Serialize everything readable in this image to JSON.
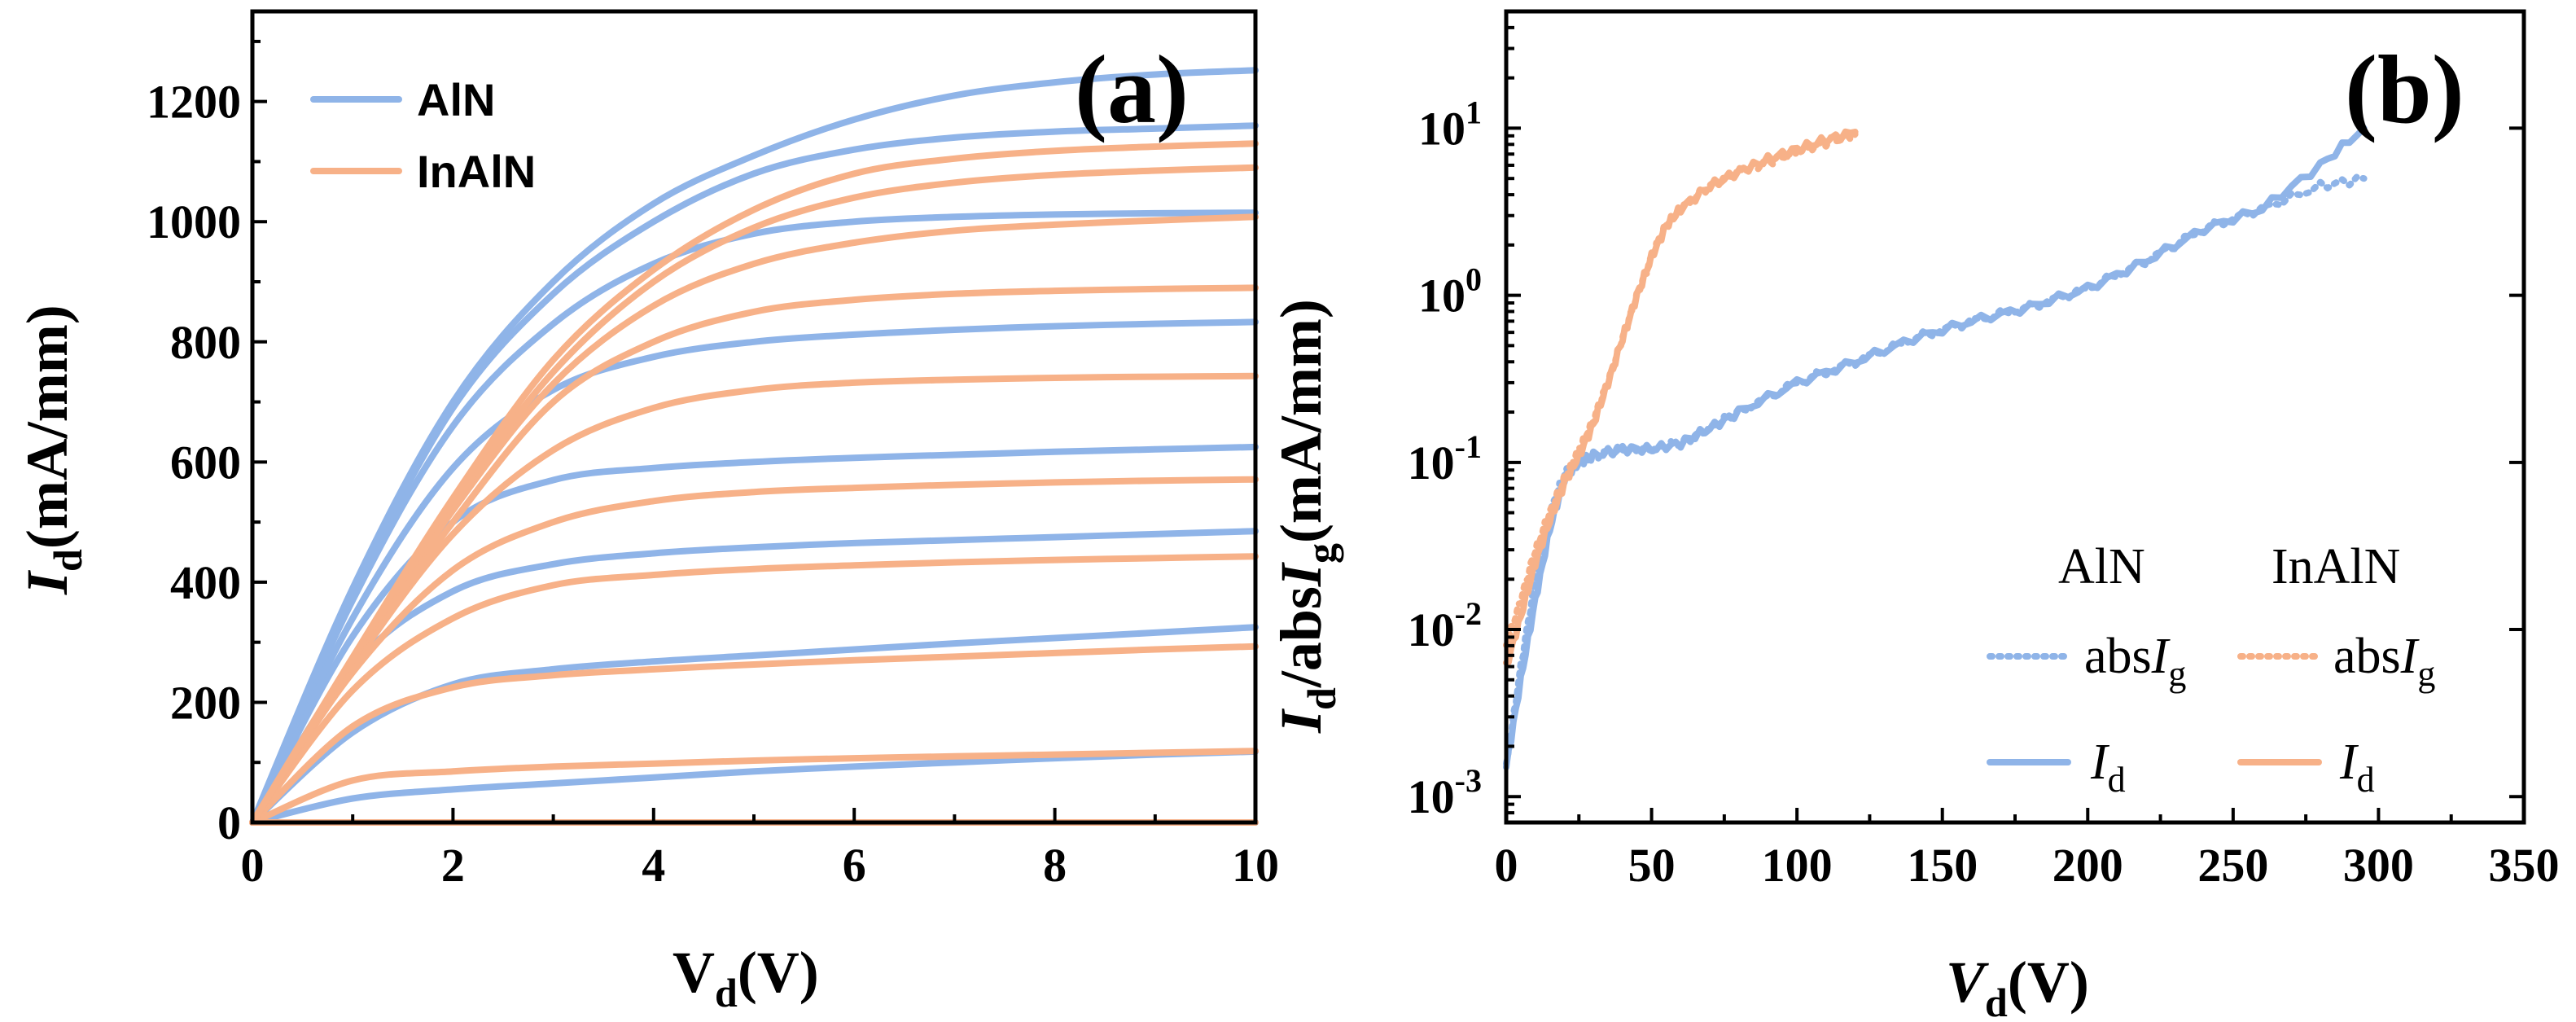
{
  "colors": {
    "aln": "#8fb4e8",
    "inaln": "#f7b188",
    "axis": "#000000"
  },
  "chart_data": [
    {
      "id": "a",
      "type": "line",
      "panel_label": "(a)",
      "xlabel": {
        "main": "V",
        "sub": "d",
        "unit": "(V)"
      },
      "ylabel": {
        "main": "I",
        "sub": "d",
        "unit": "(mA/mm)"
      },
      "xlim": [
        0,
        10
      ],
      "ylim": [
        0,
        1350
      ],
      "xticks": [
        0,
        2,
        4,
        6,
        8,
        10
      ],
      "xtick_labels": [
        "0",
        "2",
        "4",
        "6",
        "8",
        "10"
      ],
      "yticks": [
        0,
        200,
        400,
        600,
        800,
        1000,
        1200
      ],
      "ytick_labels": [
        "0",
        "200",
        "400",
        "600",
        "800",
        "1000",
        "1200"
      ],
      "legend": {
        "position": "top-left",
        "entries": [
          "AlN",
          "InAlN"
        ]
      },
      "series": [
        {
          "name": "AlN",
          "x": [
            0,
            1,
            2,
            3,
            4,
            5,
            6,
            7,
            8,
            9,
            10
          ],
          "curves": [
            [
              0,
              0,
              0,
              0,
              0,
              0,
              0,
              0,
              0,
              0,
              0
            ],
            [
              0,
              40,
              55,
              65,
              75,
              85,
              93,
              100,
              107,
              113,
              118
            ],
            [
              0,
              150,
              230,
              255,
              268,
              278,
              288,
              298,
              307,
              316,
              325
            ],
            [
              0,
              260,
              385,
              430,
              448,
              458,
              465,
              470,
              475,
              480,
              485
            ],
            [
              0,
              310,
              500,
              570,
              590,
              600,
              607,
              612,
              617,
              621,
              625
            ],
            [
              0,
              340,
              590,
              720,
              775,
              800,
              812,
              820,
              826,
              830,
              833
            ],
            [
              0,
              370,
              660,
              830,
              930,
              980,
              1000,
              1008,
              1012,
              1014,
              1015
            ],
            [
              0,
              380,
              690,
              880,
              1000,
              1080,
              1120,
              1140,
              1150,
              1155,
              1160
            ],
            [
              0,
              390,
              700,
              900,
              1030,
              1110,
              1170,
              1210,
              1232,
              1245,
              1252
            ]
          ]
        },
        {
          "name": "InAlN",
          "x": [
            0,
            1,
            2,
            3,
            4,
            5,
            6,
            7,
            8,
            9,
            10
          ],
          "curves": [
            [
              0,
              0,
              0,
              0,
              0,
              0,
              0,
              0,
              0,
              0,
              0
            ],
            [
              0,
              70,
              85,
              93,
              98,
              103,
              107,
              110,
              113,
              116,
              119
            ],
            [
              0,
              160,
              225,
              245,
              255,
              263,
              270,
              276,
              282,
              288,
              293
            ],
            [
              0,
              220,
              340,
              395,
              412,
              422,
              428,
              433,
              437,
              440,
              443
            ],
            [
              0,
              250,
              420,
              500,
              535,
              550,
              557,
              562,
              566,
              569,
              571
            ],
            [
              0,
              260,
              480,
              620,
              690,
              720,
              732,
              737,
              740,
              742,
              743
            ],
            [
              0,
              265,
              500,
              700,
              800,
              850,
              870,
              880,
              885,
              888,
              890
            ],
            [
              0,
              270,
              520,
              730,
              860,
              930,
              965,
              985,
              995,
              1002,
              1008
            ],
            [
              0,
              270,
              530,
              750,
              900,
              990,
              1040,
              1065,
              1078,
              1085,
              1090
            ],
            [
              0,
              275,
              540,
              770,
              920,
              1020,
              1080,
              1105,
              1118,
              1125,
              1130
            ]
          ]
        }
      ]
    },
    {
      "id": "b",
      "type": "line",
      "panel_label": "(b)",
      "xlabel": {
        "main": "V",
        "sub": "d",
        "unit": "(V)"
      },
      "ylabel": {
        "main1": "I",
        "sub1": "d",
        "mid": "/abs",
        "main2": "I",
        "sub2": "g",
        "unit": "(mA/mm)"
      },
      "xscale": "linear",
      "yscale": "log",
      "xlim": [
        0,
        350
      ],
      "ylim": [
        0.0007,
        50
      ],
      "xticks": [
        0,
        50,
        100,
        150,
        200,
        250,
        300,
        350
      ],
      "xtick_labels": [
        "0",
        "50",
        "100",
        "150",
        "200",
        "250",
        "300",
        "350"
      ],
      "yticks": [
        0.001,
        0.01,
        0.1,
        1,
        10
      ],
      "ytick_labels": [
        {
          "base": "10",
          "exp": "-3"
        },
        {
          "base": "10",
          "exp": "-2"
        },
        {
          "base": "10",
          "exp": "-1"
        },
        {
          "base": "10",
          "exp": "0"
        },
        {
          "base": "10",
          "exp": "1"
        }
      ],
      "legend": {
        "position": "bottom-right",
        "headers": [
          "AlN",
          "InAlN"
        ],
        "rows": [
          {
            "style": "dotted",
            "label_main": "abs",
            "label_var": "I",
            "label_sub": "g"
          },
          {
            "style": "solid",
            "label_var": "I",
            "label_sub": "d"
          }
        ]
      },
      "series": [
        {
          "name": "AlN I_d",
          "style": "solid",
          "x": [
            0,
            5,
            10,
            15,
            20,
            25,
            30,
            40,
            50,
            60,
            70,
            80,
            100,
            120,
            140,
            160,
            180,
            200,
            220,
            240,
            260,
            280,
            295
          ],
          "y": [
            0.0015,
            0.005,
            0.015,
            0.04,
            0.08,
            0.1,
            0.11,
            0.12,
            0.12,
            0.13,
            0.16,
            0.2,
            0.3,
            0.4,
            0.55,
            0.7,
            0.85,
            1.1,
            1.6,
            2.5,
            3.3,
            6,
            10
          ]
        },
        {
          "name": "AlN abs I_g",
          "style": "dotted",
          "x": [
            0,
            5,
            10,
            15,
            20,
            25,
            30,
            40,
            50,
            60,
            70,
            80,
            100,
            120,
            140,
            160,
            180,
            200,
            220,
            240,
            260,
            280,
            295
          ],
          "y": [
            0.0015,
            0.006,
            0.02,
            0.05,
            0.085,
            0.1,
            0.11,
            0.12,
            0.12,
            0.13,
            0.16,
            0.2,
            0.3,
            0.4,
            0.55,
            0.7,
            0.85,
            1.1,
            1.6,
            2.5,
            3.3,
            4.5,
            5
          ]
        },
        {
          "name": "InAlN I_d",
          "style": "solid",
          "x": [
            0,
            5,
            10,
            15,
            20,
            25,
            30,
            35,
            40,
            45,
            50,
            55,
            60,
            70,
            80,
            90,
            100,
            110,
            120
          ],
          "y": [
            0.006,
            0.012,
            0.025,
            0.045,
            0.075,
            0.11,
            0.17,
            0.3,
            0.55,
            1.0,
            1.7,
            2.6,
            3.3,
            4.5,
            5.5,
            6.5,
            7.5,
            8.5,
            9.5
          ]
        },
        {
          "name": "InAlN abs I_g",
          "style": "dotted",
          "x": [
            0,
            5,
            10,
            15,
            20,
            25,
            30,
            35,
            40,
            45,
            50,
            55,
            60,
            70,
            80,
            90,
            100,
            110,
            120
          ],
          "y": [
            0.008,
            0.015,
            0.03,
            0.05,
            0.08,
            0.12,
            0.18,
            0.3,
            0.55,
            1.0,
            1.7,
            2.6,
            3.3,
            4.5,
            5.5,
            6.3,
            7.2,
            8.2,
            9.2
          ]
        }
      ]
    }
  ]
}
